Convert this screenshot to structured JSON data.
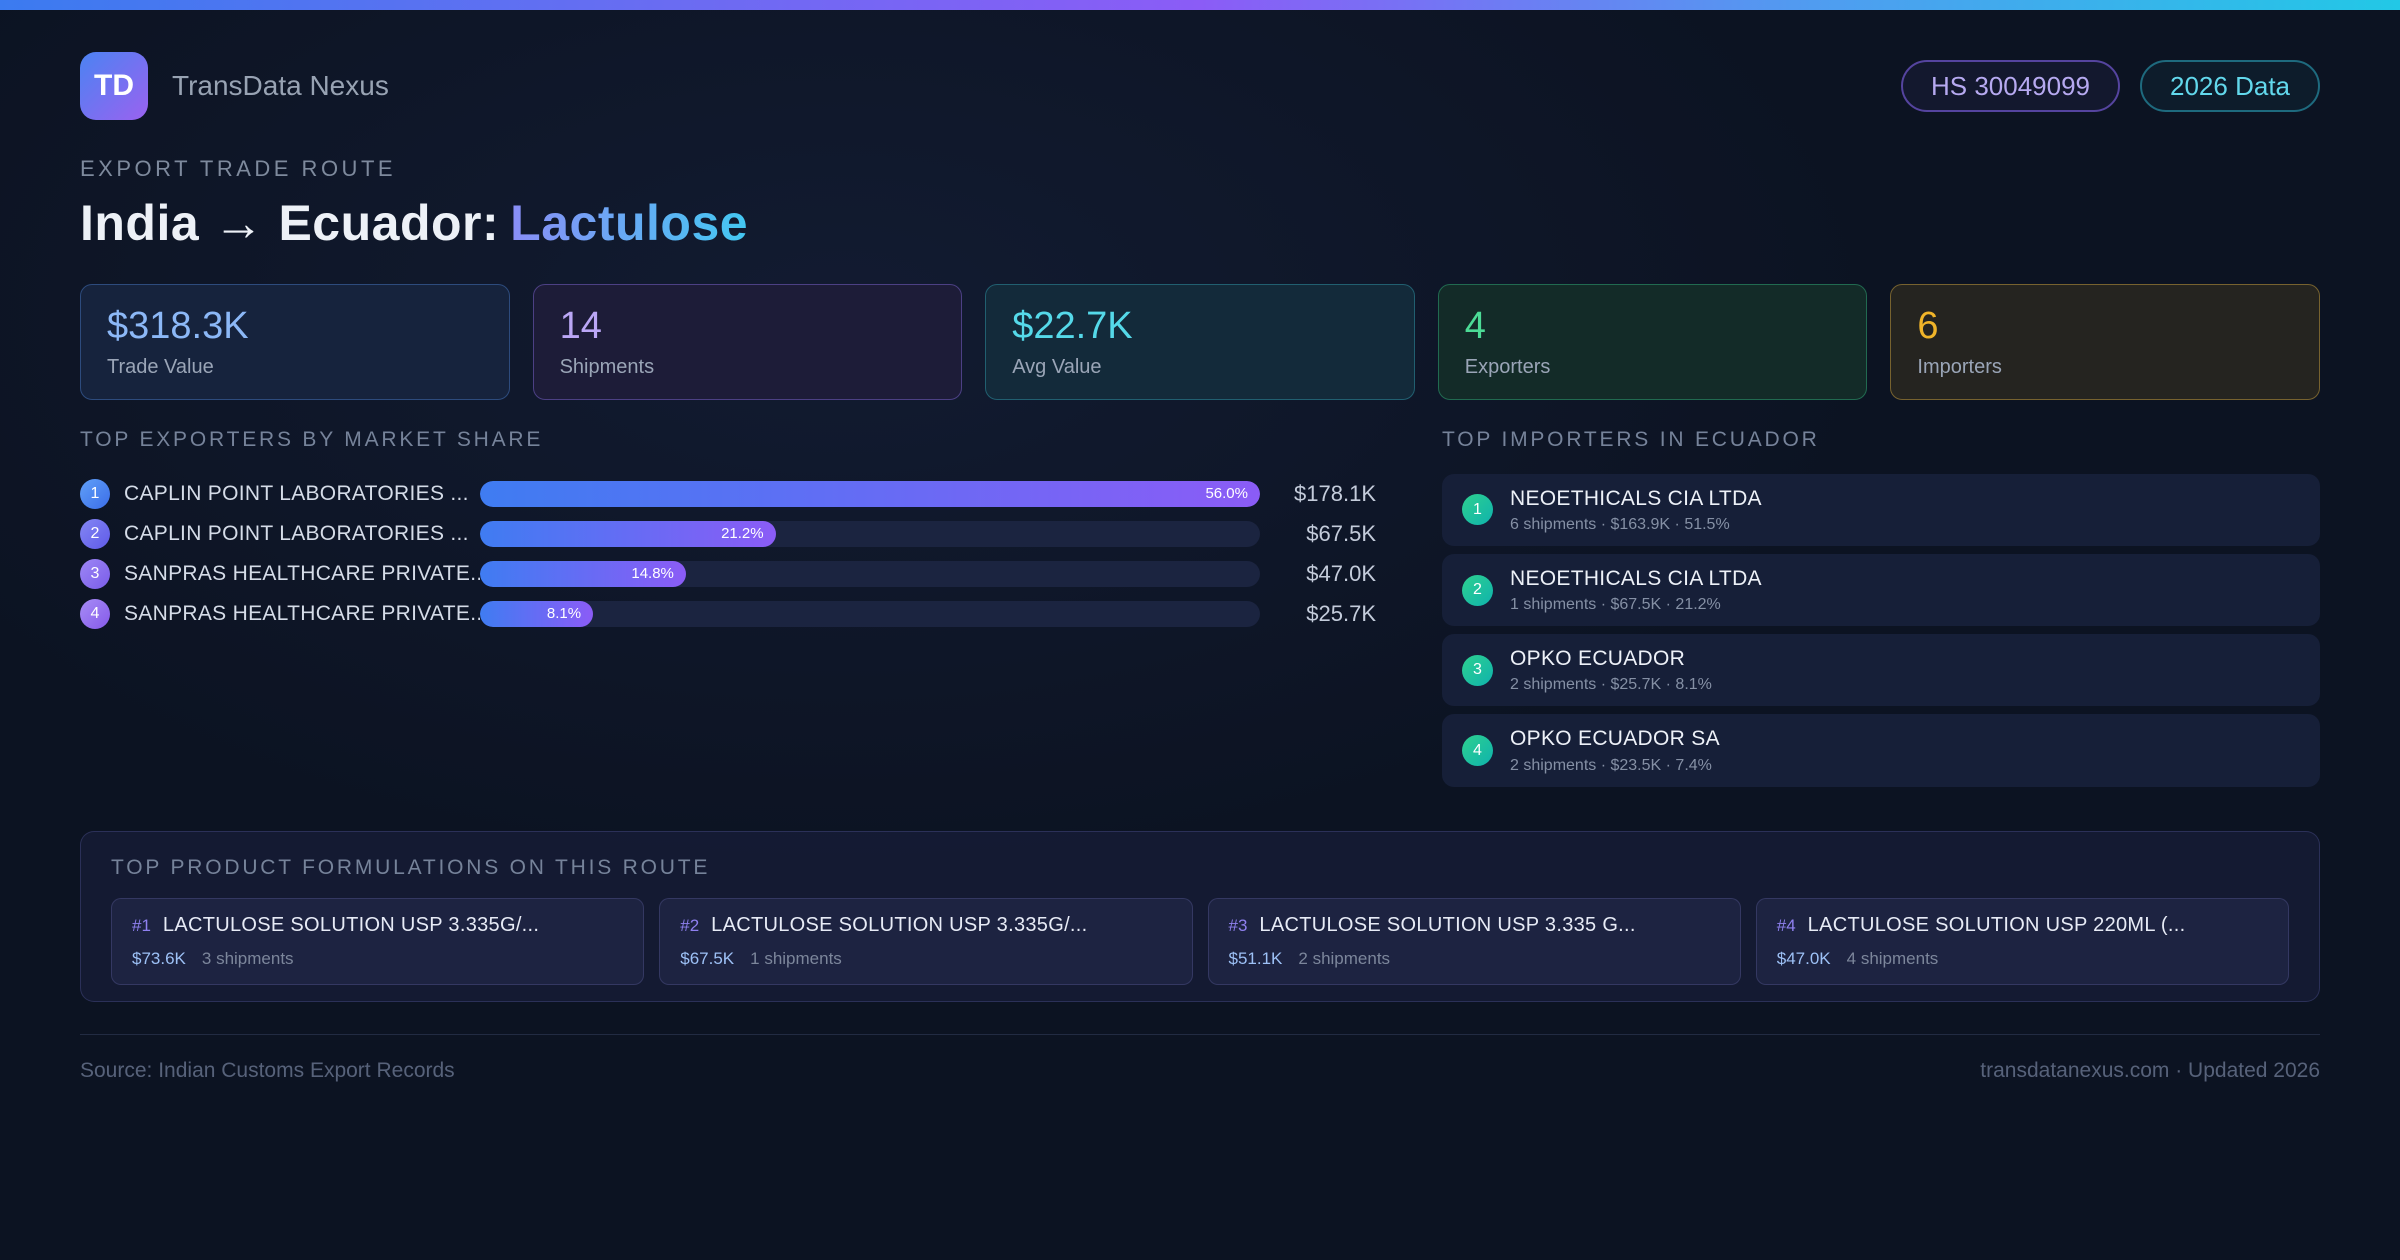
{
  "header": {
    "logo": "TD",
    "brand": "TransData Nexus",
    "hs_badge": "HS 30049099",
    "year_badge": "2026 Data"
  },
  "title": {
    "eyebrow": "EXPORT TRADE ROUTE",
    "route": "India → Ecuador:",
    "product": "Lactulose"
  },
  "stats": [
    {
      "value": "$318.3K",
      "label": "Trade Value"
    },
    {
      "value": "14",
      "label": "Shipments"
    },
    {
      "value": "$22.7K",
      "label": "Avg Value"
    },
    {
      "value": "4",
      "label": "Exporters"
    },
    {
      "value": "6",
      "label": "Importers"
    }
  ],
  "exporters": {
    "heading": "TOP EXPORTERS BY MARKET SHARE",
    "max_share_pct": 56.0,
    "rows": [
      {
        "rank": "1",
        "name": "CAPLIN POINT LABORATORIES ...",
        "share_pct": 56.0,
        "share_label": "56.0%",
        "value": "$178.1K"
      },
      {
        "rank": "2",
        "name": "CAPLIN POINT LABORATORIES ...",
        "share_pct": 21.2,
        "share_label": "21.2%",
        "value": "$67.5K"
      },
      {
        "rank": "3",
        "name": "SANPRAS HEALTHCARE PRIVATE...",
        "share_pct": 14.8,
        "share_label": "14.8%",
        "value": "$47.0K"
      },
      {
        "rank": "4",
        "name": "SANPRAS HEALTHCARE PRIVATE...",
        "share_pct": 8.1,
        "share_label": "8.1%",
        "value": "$25.7K"
      }
    ]
  },
  "importers": {
    "heading": "TOP IMPORTERS IN ECUADOR",
    "items": [
      {
        "rank": "1",
        "name": "NEOETHICALS CIA LTDA",
        "details": "6 shipments · $163.9K · 51.5%"
      },
      {
        "rank": "2",
        "name": "NEOETHICALS CIA LTDA",
        "details": "1 shipments · $67.5K · 21.2%"
      },
      {
        "rank": "3",
        "name": "OPKO ECUADOR",
        "details": "2 shipments · $25.7K · 8.1%"
      },
      {
        "rank": "4",
        "name": "OPKO ECUADOR SA",
        "details": "2 shipments · $23.5K · 7.4%"
      }
    ]
  },
  "formulations": {
    "heading": "TOP PRODUCT FORMULATIONS ON THIS ROUTE",
    "cards": [
      {
        "rank": "#1",
        "name": "LACTULOSE SOLUTION USP 3.335G/...",
        "value": "$73.6K",
        "shipments": "3 shipments"
      },
      {
        "rank": "#2",
        "name": "LACTULOSE SOLUTION USP 3.335G/...",
        "value": "$67.5K",
        "shipments": "1 shipments"
      },
      {
        "rank": "#3",
        "name": "LACTULOSE SOLUTION USP 3.335 G...",
        "value": "$51.1K",
        "shipments": "2 shipments"
      },
      {
        "rank": "#4",
        "name": "LACTULOSE SOLUTION USP 220ML (...",
        "value": "$47.0K",
        "shipments": "4 shipments"
      }
    ]
  },
  "footer": {
    "source": "Source: Indian Customs Export Records",
    "site": "transdatanexus.com · Updated 2026"
  },
  "colors": {
    "topbar_blue": "#3b7bf0",
    "topbar_purple": "#8b5cf6",
    "topbar_cyan": "#22c8e6",
    "stat_blue": "#8cb8f7",
    "stat_purple": "#bba7f6",
    "stat_teal": "#55d9e9",
    "stat_green": "#4cdb96",
    "stat_amber": "#f0b429",
    "bar_gradient_start": "#3f7cf2",
    "bar_gradient_end": "#8b5cf6",
    "importer_badge_start": "#2ed08f",
    "importer_badge_end": "#0fb3ad"
  },
  "chart_data": {
    "type": "bar",
    "title": "TOP EXPORTERS BY MARKET SHARE",
    "categories": [
      "CAPLIN POINT LABORATORIES ...",
      "CAPLIN POINT LABORATORIES ...",
      "SANPRAS HEALTHCARE PRIVATE...",
      "SANPRAS HEALTHCARE PRIVATE..."
    ],
    "values": [
      56.0,
      21.2,
      14.8,
      8.1
    ],
    "value_labels": [
      "$178.1K",
      "$67.5K",
      "$47.0K",
      "$25.7K"
    ],
    "xlabel": "market share %",
    "xlim": [
      0,
      56.0
    ],
    "orientation": "horizontal"
  }
}
